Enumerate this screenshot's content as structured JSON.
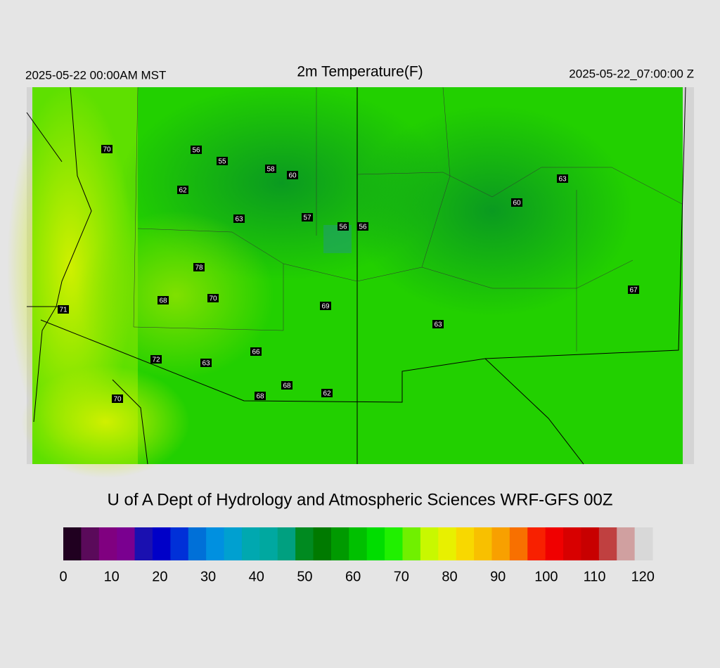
{
  "header": {
    "left": "2025-05-22 00:00AM MST",
    "title": "2m Temperature(F)",
    "right": "2025-05-22_07:00:00 Z"
  },
  "stations": [
    70,
    56,
    55,
    58,
    60,
    62,
    63,
    57,
    56,
    56,
    63,
    60,
    78,
    68,
    70,
    71,
    69,
    63,
    67,
    66,
    72,
    63,
    68,
    62,
    68,
    70
  ],
  "credit": "U of A Dept of Hydrology and Atmospheric Sciences WRF-GFS 00Z",
  "colorbar": {
    "range": [
      0,
      122
    ],
    "ticks": [
      0,
      10,
      20,
      30,
      40,
      50,
      60,
      70,
      80,
      90,
      100,
      110,
      120
    ],
    "colors": [
      "#200020",
      "#5a0a5a",
      "#800080",
      "#7a0090",
      "#1a10b0",
      "#0000c8",
      "#0030d8",
      "#0070d8",
      "#0090e0",
      "#00a0d0",
      "#00a8b0",
      "#00a8a0",
      "#00a080",
      "#008a20",
      "#007a00",
      "#009a00",
      "#00c000",
      "#00dd00",
      "#20f000",
      "#70f000",
      "#c8f800",
      "#e8f000",
      "#f8d800",
      "#f8c000",
      "#f8a000",
      "#f87000",
      "#f82000",
      "#f00000",
      "#d80000",
      "#c80000",
      "#c04040",
      "#d0a0a0",
      "#d8d8d8"
    ]
  }
}
